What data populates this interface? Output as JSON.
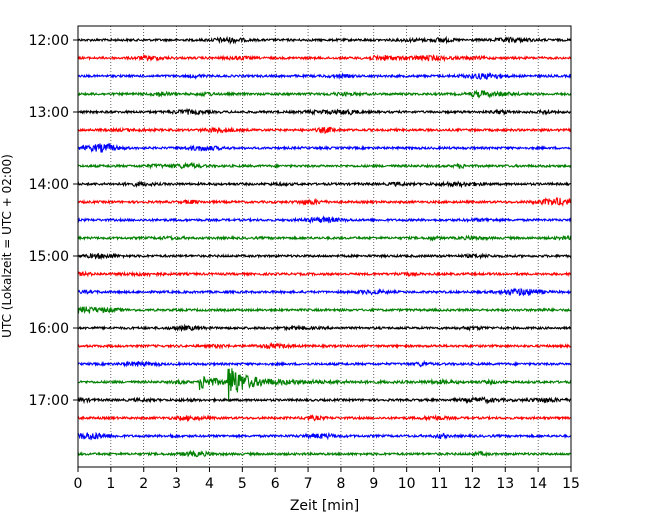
{
  "chart_data": {
    "type": "line",
    "title": "",
    "xlabel": "Zeit  [min]",
    "ylabel": "UTC (Lokalzeit = UTC + 02:00)",
    "xlim": [
      0,
      15
    ],
    "x_ticks": [
      "0",
      "1",
      "2",
      "3",
      "4",
      "5",
      "6",
      "7",
      "8",
      "9",
      "10",
      "11",
      "12",
      "13",
      "14",
      "15"
    ],
    "y_ticks": [
      "12:00",
      "13:00",
      "14:00",
      "15:00",
      "16:00",
      "17:00"
    ],
    "y_tick_row_index": [
      0,
      4,
      8,
      12,
      16,
      20
    ],
    "grid": "vertical dotted",
    "colors": [
      "#000000",
      "#ff0000",
      "#0000ff",
      "#008000"
    ],
    "rows": [
      {
        "start": "12:00",
        "color": "#000000"
      },
      {
        "start": "12:15",
        "color": "#ff0000"
      },
      {
        "start": "12:30",
        "color": "#0000ff"
      },
      {
        "start": "12:45",
        "color": "#008000"
      },
      {
        "start": "13:00",
        "color": "#000000"
      },
      {
        "start": "13:15",
        "color": "#ff0000"
      },
      {
        "start": "13:30",
        "color": "#0000ff"
      },
      {
        "start": "13:45",
        "color": "#008000"
      },
      {
        "start": "14:00",
        "color": "#000000"
      },
      {
        "start": "14:15",
        "color": "#ff0000"
      },
      {
        "start": "14:30",
        "color": "#0000ff"
      },
      {
        "start": "14:45",
        "color": "#008000"
      },
      {
        "start": "15:00",
        "color": "#000000"
      },
      {
        "start": "15:15",
        "color": "#ff0000"
      },
      {
        "start": "15:30",
        "color": "#0000ff"
      },
      {
        "start": "15:45",
        "color": "#008000"
      },
      {
        "start": "16:00",
        "color": "#000000"
      },
      {
        "start": "16:15",
        "color": "#ff0000"
      },
      {
        "start": "16:30",
        "color": "#0000ff"
      },
      {
        "start": "16:45",
        "color": "#008000"
      },
      {
        "start": "17:00",
        "color": "#000000"
      },
      {
        "start": "17:15",
        "color": "#ff0000"
      },
      {
        "start": "17:30",
        "color": "#0000ff"
      },
      {
        "start": "17:45",
        "color": "#008000"
      }
    ],
    "events": [
      {
        "row_start": "16:45",
        "onset_min": 3.7,
        "peak_min": 4.65,
        "amplitude": "large"
      }
    ]
  }
}
